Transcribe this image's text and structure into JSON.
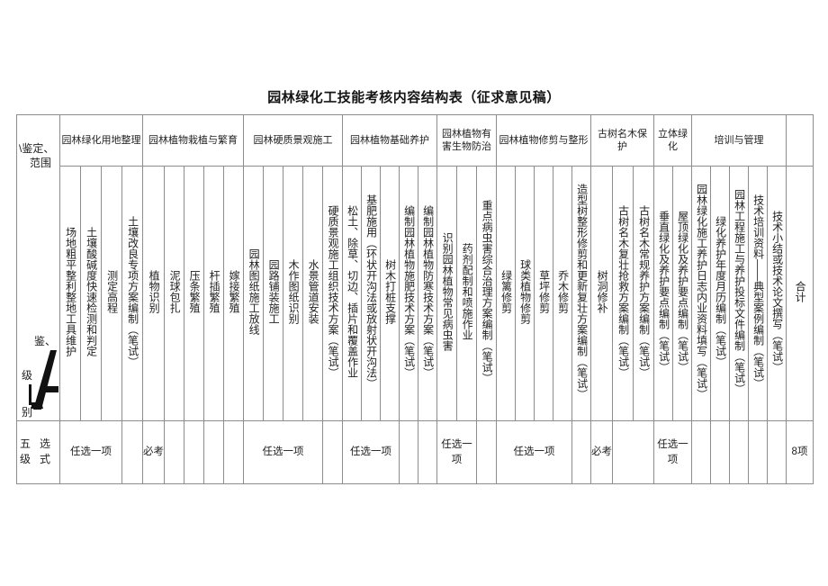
{
  "title": "园林绿化工技能考核内容结构表（征求意见稿）",
  "corner": {
    "line1": "\\鉴定、",
    "line2": "范围",
    "jian": "鉴、",
    "ji": "级",
    "bie": "别"
  },
  "level_cell": {
    "tl": "五",
    "tr": "选",
    "bl": "级",
    "br": "式"
  },
  "groups": [
    {
      "name": "园林绿化用地整理",
      "items": [
        "场地粗平整利整地工具维护",
        "土壤酸碱度快速检测和判定",
        "测定高程",
        "土壤改良专项方案编制（笔试）"
      ],
      "exam": [
        {
          "label": "任选一项",
          "span": 3
        },
        {
          "label": "",
          "span": 1
        }
      ]
    },
    {
      "name": "园林植物栽植与繁育",
      "items": [
        "植物识别",
        "泥球包扎",
        "压条繁殖",
        "杆插繁殖",
        "嫁接繁殖"
      ],
      "exam": [
        {
          "label": "必考",
          "span": 1
        },
        {
          "label": "",
          "span": 1
        },
        {
          "label": "",
          "span": 1
        },
        {
          "label": "",
          "span": 1
        },
        {
          "label": "",
          "span": 1
        }
      ]
    },
    {
      "name": "园林硬质景观施工",
      "items": [
        "园林图纸施工放线",
        "园路铺装施工",
        "木作图纸识别",
        "水景管道安装",
        "硬质景观施工组织技术方案（笔试）"
      ],
      "exam": [
        {
          "label": "任选一项",
          "span": 4
        },
        {
          "label": "",
          "span": 1
        }
      ]
    },
    {
      "name": "园林植物基础养护",
      "items": [
        "松土、除草、切边、插片和覆盖作业",
        "基肥施用（环状开沟法或放射状开沟法）",
        "树木打桩支撑",
        "编制园林植物施肥技术方案（笔试）",
        "编制园林植物防寒技术方案（笔试）"
      ],
      "exam": [
        {
          "label": "任选一项",
          "span": 3
        },
        {
          "label": "",
          "span": 1
        },
        {
          "label": "",
          "span": 1
        }
      ]
    },
    {
      "name": "园林植物有害生物防治",
      "items": [
        "识别园林植物常见病虫害",
        "药剂配制和喷施作业",
        "重点病虫害综合治理方案编制（笔试）"
      ],
      "exam": [
        {
          "label": "任选一项",
          "span": 2
        },
        {
          "label": "",
          "span": 1
        }
      ]
    },
    {
      "name": "园林植物修剪与整形",
      "items": [
        "绿篱修剪",
        "球类植物修剪",
        "草坪修剪",
        "乔木修剪",
        "造型树整形修剪和更新复壮方案编制（笔试）"
      ],
      "exam": [
        {
          "label": "任选一项",
          "span": 4
        },
        {
          "label": "",
          "span": 1
        }
      ]
    },
    {
      "name": "古树名木保护",
      "items": [
        "树洞修补",
        "古树名木复壮抢救方案编制（笔试）",
        "古树名木常规养护方案编制（笔试）"
      ],
      "exam": [
        {
          "label": "必考",
          "span": 1
        },
        {
          "label": "",
          "span": 2
        }
      ]
    },
    {
      "name": "立体绿化",
      "items": [
        "垂直绿化及养护要点编制（笔试）",
        "屋顶绿化及养护要点编制（笔试）"
      ],
      "exam": [
        {
          "label": "任选一项",
          "span": 2
        }
      ]
    },
    {
      "name": "培训与管理",
      "items": [
        "园林绿化施工养护日志内业资料填写（笔试）",
        "绿化养护年度月历编制（笔试）",
        "园林工程施工与养护投标文件编制（笔试）",
        "技术培训资料——典型案例编制（笔试）",
        "技术小结或技术论文撰写（笔试）"
      ],
      "exam": [
        {
          "label": "",
          "span": 1
        },
        {
          "label": "",
          "span": 1
        },
        {
          "label": "",
          "span": 1
        },
        {
          "label": "",
          "span": 1
        },
        {
          "label": "",
          "span": 1
        }
      ]
    }
  ],
  "total_column": {
    "header": "",
    "label": "合计",
    "exam": "8项"
  },
  "colors": {
    "border": "#8d8d8d",
    "text": "#1f1f1f"
  }
}
